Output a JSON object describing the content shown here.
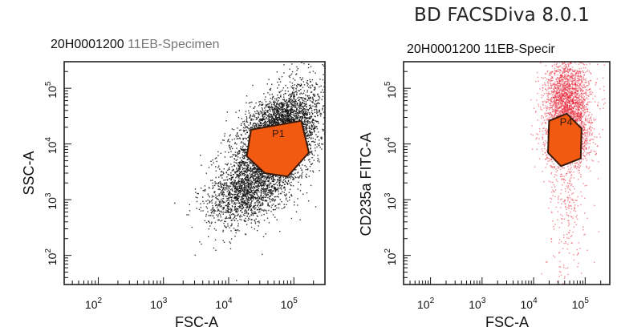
{
  "app_title": "BD FACSDiva 8.0.1",
  "chart_data": [
    {
      "type": "scatter",
      "title": "20H0001200",
      "title_specimen": "11EB-Specimen",
      "xlabel": "FSC-A",
      "ylabel": "SSC-A",
      "x_scale": "log",
      "y_scale": "log",
      "xlim": [
        30,
        300000
      ],
      "ylim": [
        30,
        300000
      ],
      "x_ticks": [
        {
          "value": 100,
          "base": "10",
          "exp": "2"
        },
        {
          "value": 1000,
          "base": "10",
          "exp": "3"
        },
        {
          "value": 10000,
          "base": "10",
          "exp": "4"
        },
        {
          "value": 100000,
          "base": "10",
          "exp": "5"
        }
      ],
      "y_ticks": [
        {
          "value": 100,
          "base": "10",
          "exp": "2"
        },
        {
          "value": 1000,
          "base": "10",
          "exp": "3"
        },
        {
          "value": 10000,
          "base": "10",
          "exp": "4"
        },
        {
          "value": 100000,
          "base": "10",
          "exp": "5"
        }
      ],
      "event_color": "#111111",
      "gate": {
        "name": "P1",
        "color": "#f25a12",
        "outline": "#3a1a0a",
        "polygon": [
          [
            22000,
            18000
          ],
          [
            130000,
            26000
          ],
          [
            170000,
            7000
          ],
          [
            80000,
            2600
          ],
          [
            36000,
            3000
          ],
          [
            19000,
            6000
          ]
        ]
      },
      "populations": [
        {
          "cx": 50000,
          "cy": 9000,
          "sx": 0.38,
          "sy": 0.55,
          "rho": 0.55,
          "n": 3500
        },
        {
          "cx": 60000,
          "cy": 18000,
          "sx": 0.25,
          "sy": 0.3,
          "rho": 0.3,
          "n": 1500
        },
        {
          "cx": 17000,
          "cy": 1300,
          "sx": 0.3,
          "sy": 0.28,
          "rho": 0.4,
          "n": 1000
        }
      ]
    },
    {
      "type": "scatter",
      "title": "20H0001200",
      "title_specimen": "11EB-Specir",
      "xlabel": "FSC-A",
      "ylabel": "CD235a FITC-A",
      "x_scale": "log",
      "y_scale": "log",
      "xlim": [
        30,
        300000
      ],
      "ylim": [
        30,
        300000
      ],
      "x_ticks": [
        {
          "value": 100,
          "base": "10",
          "exp": "2"
        },
        {
          "value": 1000,
          "base": "10",
          "exp": "3"
        },
        {
          "value": 10000,
          "base": "10",
          "exp": "4"
        },
        {
          "value": 100000,
          "base": "10",
          "exp": "5"
        }
      ],
      "y_ticks": [
        {
          "value": 100,
          "base": "10",
          "exp": "2"
        },
        {
          "value": 1000,
          "base": "10",
          "exp": "3"
        },
        {
          "value": 10000,
          "base": "10",
          "exp": "4"
        },
        {
          "value": 100000,
          "base": "10",
          "exp": "5"
        }
      ],
      "event_color": "#e8283a",
      "gate": {
        "name": "P4",
        "color": "#f25a12",
        "outline": "#3a1a0a",
        "polygon": [
          [
            20000,
            26000
          ],
          [
            44000,
            35000
          ],
          [
            85000,
            19000
          ],
          [
            82000,
            5500
          ],
          [
            34000,
            4000
          ],
          [
            19000,
            7000
          ]
        ]
      },
      "populations": [
        {
          "cx": 45000,
          "cy": 60000,
          "sx": 0.22,
          "sy": 0.38,
          "rho": 0.0,
          "n": 2200
        },
        {
          "cx": 45000,
          "cy": 12000,
          "sx": 0.22,
          "sy": 0.25,
          "rho": 0.0,
          "n": 1200
        },
        {
          "cx": 45000,
          "cy": 800,
          "sx": 0.2,
          "sy": 0.7,
          "rho": 0.0,
          "n": 280
        }
      ]
    }
  ]
}
